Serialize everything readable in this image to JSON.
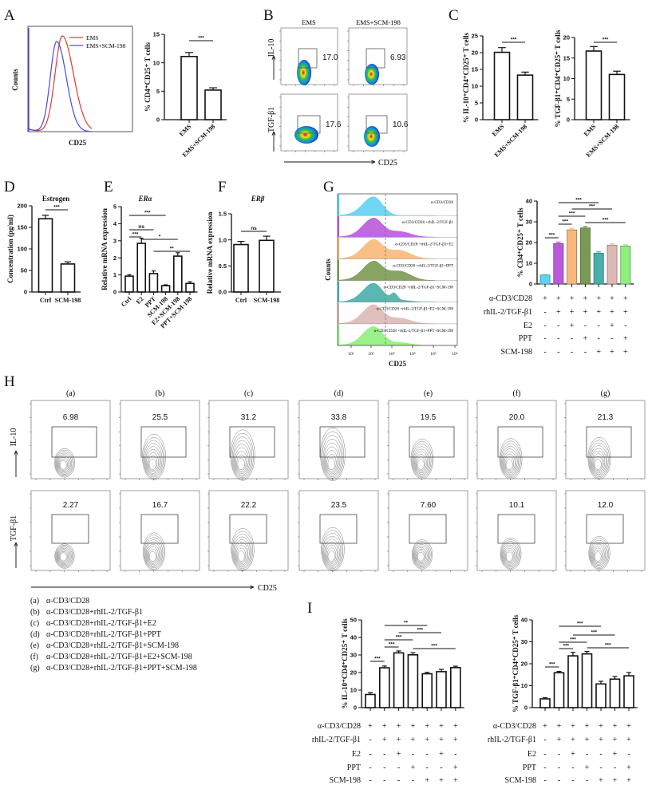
{
  "panel_labels": {
    "A": "A",
    "B": "B",
    "C": "C",
    "D": "D",
    "E": "E",
    "F": "F",
    "G": "G",
    "H": "H",
    "I": "I"
  },
  "colors": {
    "ems": "#e03a3a",
    "ems_scm": "#4a4ae6",
    "bar_outline": "#111111"
  },
  "chart_data": [
    {
      "id": "A_hist",
      "type": "line",
      "xlabel": "CD25",
      "ylabel": "Counts",
      "series": [
        {
          "name": "EMS",
          "color": "#e03a3a"
        },
        {
          "name": "EMS+SCM-198",
          "color": "#4a4ae6"
        }
      ],
      "legend": "top-right"
    },
    {
      "id": "A_bar",
      "type": "bar",
      "ylabel": "% CD4⁺CD25⁺ T cells",
      "categories": [
        "EMS",
        "EMS+SCM-198"
      ],
      "values": [
        11.1,
        5.2
      ],
      "errors": [
        0.7,
        0.4
      ],
      "ylim": [
        0,
        15
      ],
      "yticks": [
        "0",
        "5",
        "10",
        "15"
      ],
      "significance": [
        {
          "a": 0,
          "b": 1,
          "label": "***"
        }
      ]
    },
    {
      "id": "C_il10",
      "type": "bar",
      "ylabel": "% IL-10⁺CD4⁺CD25⁺ T cells",
      "categories": [
        "EMS",
        "EMS+SCM-198"
      ],
      "values": [
        20.1,
        13.3
      ],
      "errors": [
        1.4,
        0.9
      ],
      "ylim": [
        0,
        25
      ],
      "yticks": [
        "0",
        "5",
        "10",
        "15",
        "20",
        "25"
      ],
      "significance": [
        {
          "a": 0,
          "b": 1,
          "label": "***"
        }
      ]
    },
    {
      "id": "C_tgf",
      "type": "bar",
      "ylabel": "% TGF-β1⁺CD4⁺CD25⁺ T cells",
      "categories": [
        "EMS",
        "EMS+SCM-198"
      ],
      "values": [
        16.7,
        11.0
      ],
      "errors": [
        1.1,
        0.8
      ],
      "ylim": [
        0,
        20
      ],
      "yticks": [
        "0",
        "5",
        "10",
        "15",
        "20"
      ],
      "significance": [
        {
          "a": 0,
          "b": 1,
          "label": "***"
        }
      ]
    },
    {
      "id": "D",
      "type": "bar",
      "title": "Estrogen",
      "ylabel": "Concentration (pg/ml)",
      "categories": [
        "Ctrl",
        "SCM-198"
      ],
      "values": [
        170,
        65
      ],
      "errors": [
        8,
        5
      ],
      "ylim": [
        0,
        200
      ],
      "yticks": [
        "0",
        "50",
        "100",
        "150",
        "200"
      ],
      "significance": [
        {
          "a": 0,
          "b": 1,
          "label": "***"
        }
      ]
    },
    {
      "id": "E",
      "type": "bar",
      "title": "ERα",
      "ylabel": "Relative mRNA expression",
      "categories": [
        "Ctrl",
        "E2",
        "PPT",
        "SCM-198",
        "E2+SCM-198",
        "PPT+SCM-198"
      ],
      "values": [
        0.93,
        2.85,
        1.08,
        0.37,
        2.1,
        0.5
      ],
      "errors": [
        0.08,
        0.3,
        0.15,
        0.05,
        0.2,
        0.1
      ],
      "ylim": [
        0,
        5
      ],
      "yticks": [
        "0",
        "1",
        "2",
        "3",
        "4",
        "5"
      ],
      "significance": [
        {
          "a": 0,
          "b": 1,
          "label": "***"
        },
        {
          "a": 0,
          "b": 2,
          "label": "ns"
        },
        {
          "a": 0,
          "b": 3,
          "label": "***"
        },
        {
          "a": 1,
          "b": 4,
          "label": "*"
        },
        {
          "a": 2,
          "b": 5,
          "label": "**"
        }
      ]
    },
    {
      "id": "F",
      "type": "bar",
      "title": "ERβ",
      "ylabel": "Relative mRNA expression",
      "categories": [
        "Ctrl",
        "SCM-198"
      ],
      "values": [
        0.91,
        0.99
      ],
      "errors": [
        0.06,
        0.08
      ],
      "ylim": [
        0,
        1.5
      ],
      "yticks": [
        "0.0",
        "0.5",
        "1.0",
        "1.5"
      ],
      "significance": [
        {
          "a": 0,
          "b": 1,
          "label": "ns"
        }
      ]
    },
    {
      "id": "G_hist",
      "type": "area",
      "xlabel": "CD25",
      "ylabel": "Counts",
      "xticks": [
        "10¹",
        "10²",
        "10³",
        "10⁴",
        "10⁵",
        "10⁶"
      ],
      "series": [
        {
          "name": "α-CD3/CD28",
          "color": "#5fd3f3"
        },
        {
          "name": "α-CD3/CD28 +rhIL-2/TGF-β1",
          "color": "#b95ad8"
        },
        {
          "name": "α-CD3/CD28 +rhIL-2/TGF-β1+E2",
          "color": "#f9b879"
        },
        {
          "name": "α-CD3/CD28 +rhIL-2/TGF-β1+PPT",
          "color": "#7a9a52"
        },
        {
          "name": "α-CD3/CD28 +rhIL-2/TGF-β1+SCM-198",
          "color": "#4aaeaa"
        },
        {
          "name": "α-CD3/CD28 +rhIL-2/TGF-β1+E2+SCM-198",
          "color": "#ddb9b5"
        },
        {
          "name": "α-CD3/CD28 +rhIL-2/TGF-β1+PPT+SCM-198",
          "color": "#8ff07c"
        }
      ]
    },
    {
      "id": "G_bar",
      "type": "bar",
      "ylabel": "% CD4⁺CD25⁺ T cells",
      "values": [
        4.3,
        19.5,
        26.1,
        27.0,
        14.8,
        18.7,
        18.3
      ],
      "errors": [
        0.3,
        0.7,
        0.8,
        0.8,
        0.7,
        0.7,
        0.6
      ],
      "colors": [
        "#5fd3f3",
        "#b95ad8",
        "#f9b879",
        "#7a9a52",
        "#4aaeaa",
        "#ddb9b5",
        "#8ff07c"
      ],
      "ylim": [
        0,
        40
      ],
      "yticks": [
        "0",
        "10",
        "20",
        "30",
        "40"
      ],
      "significance": [
        {
          "a": 0,
          "b": 1,
          "label": "***"
        },
        {
          "a": 1,
          "b": 2,
          "label": "***"
        },
        {
          "a": 1,
          "b": 3,
          "label": "***"
        },
        {
          "a": 1,
          "b": 4,
          "label": "***"
        },
        {
          "a": 2,
          "b": 5,
          "label": "***"
        },
        {
          "a": 3,
          "b": 6,
          "label": "***"
        }
      ],
      "conditions": [
        {
          "label": "α-CD3/CD28",
          "signs": [
            "+",
            "+",
            "+",
            "+",
            "+",
            "+",
            "+"
          ]
        },
        {
          "label": "rhIL-2/TGF-β1",
          "signs": [
            "-",
            "+",
            "+",
            "+",
            "+",
            "+",
            "+"
          ]
        },
        {
          "label": "E2",
          "signs": [
            "-",
            "-",
            "+",
            "-",
            "-",
            "+",
            "-"
          ]
        },
        {
          "label": "PPT",
          "signs": [
            "-",
            "-",
            "-",
            "+",
            "-",
            "-",
            "+"
          ]
        },
        {
          "label": "SCM-198",
          "signs": [
            "-",
            "-",
            "-",
            "-",
            "+",
            "+",
            "+"
          ]
        }
      ]
    },
    {
      "id": "I_il10",
      "type": "bar",
      "ylabel": "% IL-10⁺CD4⁺CD25⁺ T cells",
      "values": [
        7.5,
        22.7,
        31.2,
        30.1,
        19.3,
        20.5,
        22.8
      ],
      "errors": [
        1.0,
        1.0,
        1.1,
        1.2,
        0.8,
        1.3,
        0.8
      ],
      "ylim": [
        0,
        50
      ],
      "yticks": [
        "0",
        "10",
        "20",
        "30",
        "40",
        "50"
      ],
      "significance": [
        {
          "a": 0,
          "b": 1,
          "label": "***"
        },
        {
          "a": 1,
          "b": 2,
          "label": "***"
        },
        {
          "a": 1,
          "b": 3,
          "label": "***"
        },
        {
          "a": 1,
          "b": 4,
          "label": "**"
        },
        {
          "a": 2,
          "b": 5,
          "label": "***"
        },
        {
          "a": 3,
          "b": 6,
          "label": "***"
        }
      ],
      "conditions": [
        {
          "label": "α-CD3/CD28",
          "signs": [
            "+",
            "+",
            "+",
            "+",
            "+",
            "+",
            "+"
          ]
        },
        {
          "label": "rhIL-2/TGF-β1",
          "signs": [
            "-",
            "+",
            "+",
            "+",
            "+",
            "+",
            "+"
          ]
        },
        {
          "label": "E2",
          "signs": [
            "-",
            "-",
            "+",
            "-",
            "-",
            "+",
            "-"
          ]
        },
        {
          "label": "PPT",
          "signs": [
            "-",
            "-",
            "-",
            "+",
            "-",
            "-",
            "+"
          ]
        },
        {
          "label": "SCM-198",
          "signs": [
            "-",
            "-",
            "-",
            "-",
            "+",
            "+",
            "+"
          ]
        }
      ]
    },
    {
      "id": "I_tgf",
      "type": "bar",
      "ylabel": "% TGF-β1⁺CD4⁺CD25⁺ T cells",
      "values": [
        4.0,
        15.9,
        23.6,
        24.5,
        10.8,
        13.0,
        14.5
      ],
      "errors": [
        0.5,
        0.6,
        1.6,
        1.1,
        1.2,
        1.2,
        1.5
      ],
      "ylim": [
        0,
        40
      ],
      "yticks": [
        "0",
        "10",
        "20",
        "30",
        "40"
      ],
      "significance": [
        {
          "a": 0,
          "b": 1,
          "label": "***"
        },
        {
          "a": 1,
          "b": 2,
          "label": "***"
        },
        {
          "a": 1,
          "b": 3,
          "label": "***"
        },
        {
          "a": 1,
          "b": 4,
          "label": "***"
        },
        {
          "a": 2,
          "b": 5,
          "label": "***"
        },
        {
          "a": 3,
          "b": 6,
          "label": "***"
        }
      ],
      "conditions": [
        {
          "label": "α-CD3/CD28",
          "signs": [
            "+",
            "+",
            "+",
            "+",
            "+",
            "+",
            "+"
          ]
        },
        {
          "label": "rhIL-2/TGF-β1",
          "signs": [
            "-",
            "+",
            "+",
            "+",
            "+",
            "+",
            "+"
          ]
        },
        {
          "label": "E2",
          "signs": [
            "-",
            "-",
            "+",
            "-",
            "-",
            "+",
            "-"
          ]
        },
        {
          "label": "PPT",
          "signs": [
            "-",
            "-",
            "-",
            "+",
            "-",
            "-",
            "+"
          ]
        },
        {
          "label": "SCM-198",
          "signs": [
            "-",
            "-",
            "-",
            "-",
            "+",
            "+",
            "+"
          ]
        }
      ]
    }
  ],
  "flow": {
    "B": {
      "columns": [
        "EMS",
        "EMS+SCM-198"
      ],
      "rows": [
        "IL-10",
        "TGF-β1"
      ],
      "xlabel": "CD25",
      "values": [
        [
          "17.0",
          "6.93"
        ],
        [
          "17.6",
          "10.6"
        ]
      ]
    },
    "H": {
      "columns": [
        "(a)",
        "(b)",
        "(c)",
        "(d)",
        "(e)",
        "(f)",
        "(g)"
      ],
      "rows": [
        "IL-10",
        "TGF-β1"
      ],
      "xlabel": "CD25",
      "values": [
        [
          "6.98",
          "25.5",
          "31.2",
          "33.8",
          "19.5",
          "20.0",
          "21.3"
        ],
        [
          "2.27",
          "16.7",
          "22.2",
          "23.5",
          "7.60",
          "10.1",
          "12.0"
        ]
      ],
      "legend": [
        {
          "key": "(a)",
          "text": "α-CD3/CD28"
        },
        {
          "key": "(b)",
          "text": "α-CD3/CD28+rhIL-2/TGF-β1"
        },
        {
          "key": "(c)",
          "text": "α-CD3/CD28+rhIL-2/TGF-β1+E2"
        },
        {
          "key": "(d)",
          "text": "α-CD3/CD28+rhIL-2/TGF-β1+PPT"
        },
        {
          "key": "(e)",
          "text": "α-CD3/CD28+rhIL-2/TGF-β1+SCM-198"
        },
        {
          "key": "(f)",
          "text": "α-CD3/CD28+rhIL-2/TGF-β1+E2+SCM-198"
        },
        {
          "key": "(g)",
          "text": "α-CD3/CD28+rhIL-2/TGF-β1+PPT+SCM-198"
        }
      ]
    }
  }
}
